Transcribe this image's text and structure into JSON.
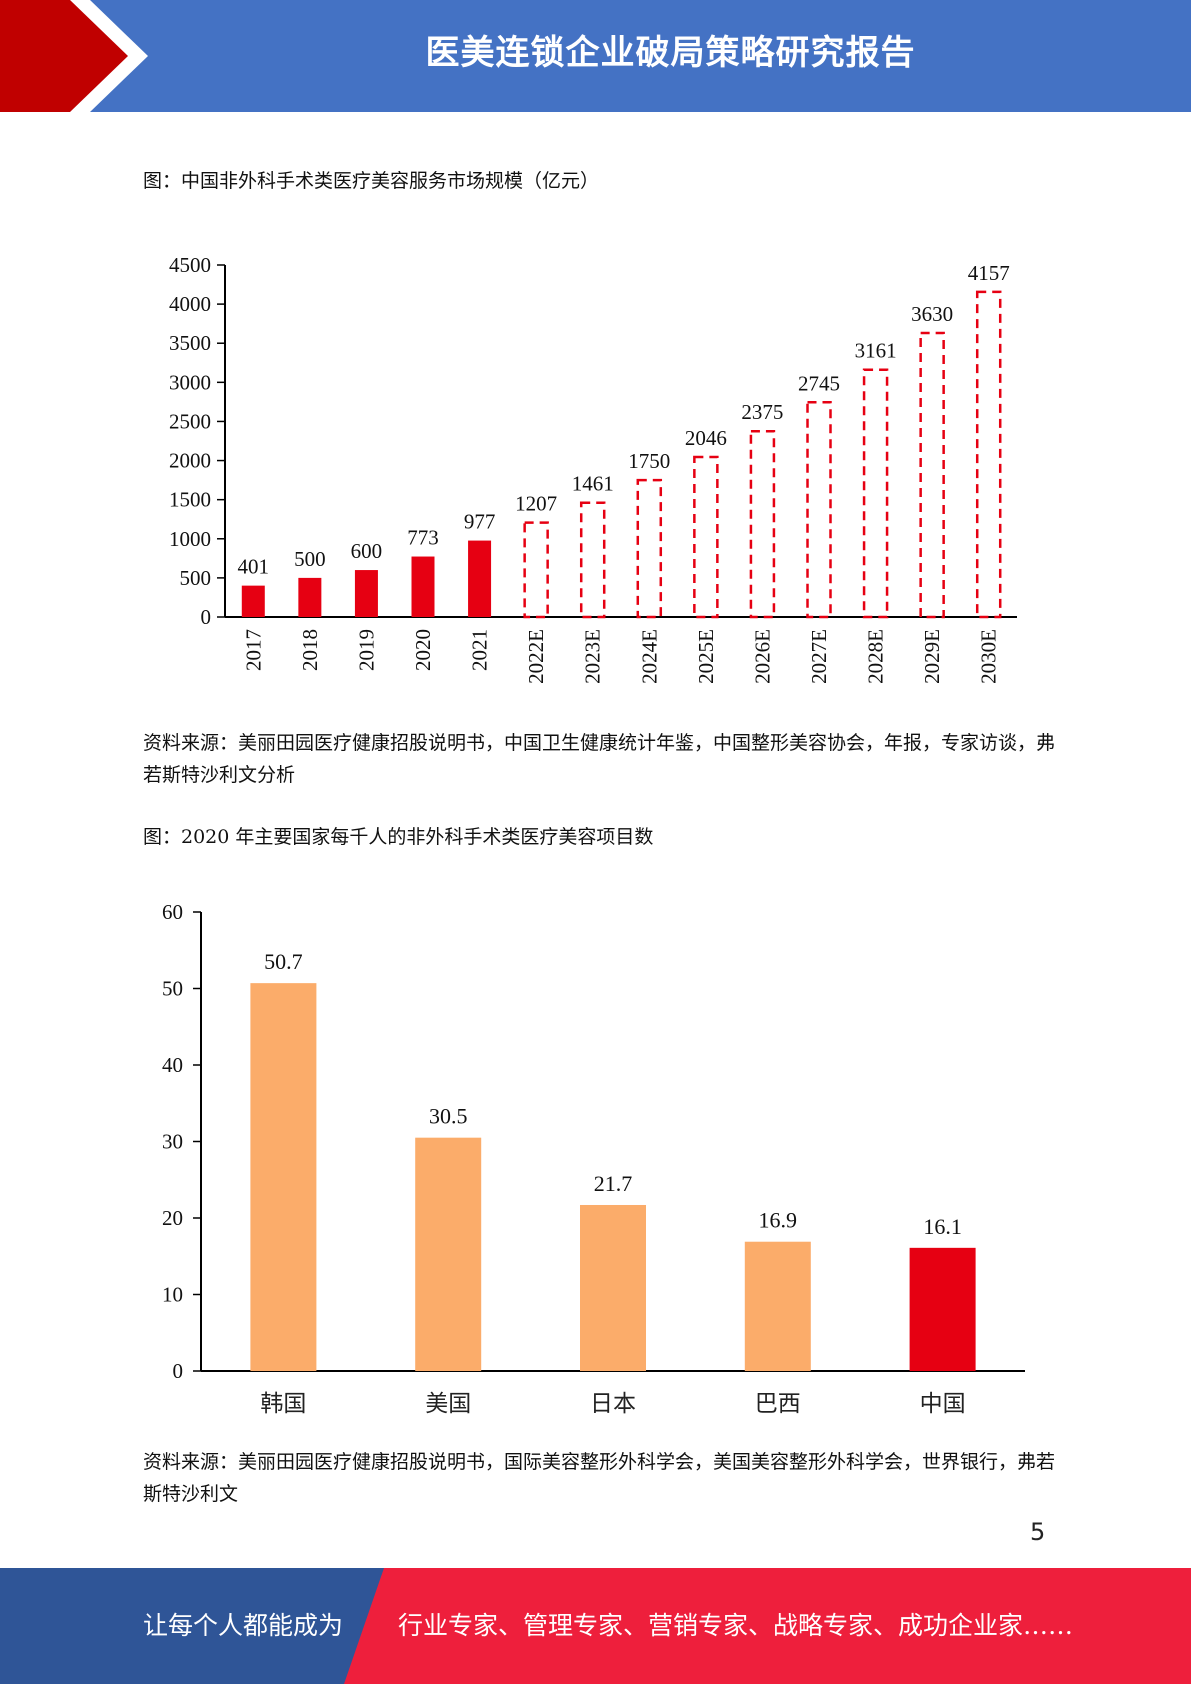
{
  "header": {
    "title": "医美连锁企业破局策略研究报告"
  },
  "figure1": {
    "caption": "图：中国非外科手术类医疗美容服务市场规模（亿元）",
    "source": "资料来源：美丽田园医疗健康招股说明书，中国卫生健康统计年鉴，中国整形美容协会，年报，专家访谈，弗若斯特沙利文分析"
  },
  "figure2": {
    "caption": "图：2020 年主要国家每千人的非外科手术类医疗美容项目数",
    "source": "资料来源：美丽田园医疗健康招股说明书，国际美容整形外科学会，美国美容整形外科学会，世界银行，弗若斯特沙利文"
  },
  "page_number": "5",
  "footer": {
    "left_text": "让每个人都能成为",
    "right_text": "行业专家、管理专家、营销专家、战略专家、成功企业家……"
  },
  "colors": {
    "header_blue": "#4472c4",
    "accent_red": "#e60012",
    "orange": "#fbac6a",
    "footer_blue": "#2f5597",
    "footer_red": "#ee1f3c"
  },
  "chart_data": [
    {
      "type": "bar",
      "categories": [
        "2017",
        "2018",
        "2019",
        "2020",
        "2021",
        "2022E",
        "2023E",
        "2024E",
        "2025E",
        "2026E",
        "2027E",
        "2028E",
        "2029E",
        "2030E"
      ],
      "values": [
        401,
        500,
        600,
        773,
        977,
        1207,
        1461,
        1750,
        2046,
        2375,
        2745,
        3161,
        3630,
        4157
      ],
      "data_labels": [
        "401",
        "500",
        "600",
        "773",
        "977",
        "1207",
        "1461",
        "1750",
        "2046",
        "2375",
        "2745",
        "3161",
        "3630",
        "4157"
      ],
      "estimated": [
        false,
        false,
        false,
        false,
        false,
        true,
        true,
        true,
        true,
        true,
        true,
        true,
        true,
        true
      ],
      "yticks": [
        "0",
        "500",
        "1000",
        "1500",
        "2000",
        "2500",
        "3000",
        "3500",
        "4000",
        "4500"
      ],
      "ylim": [
        0,
        4500
      ],
      "bar_color": "#e60012",
      "grid": false,
      "title": "",
      "xlabel": "",
      "ylabel": ""
    },
    {
      "type": "bar",
      "categories": [
        "韩国",
        "美国",
        "日本",
        "巴西",
        "中国"
      ],
      "values": [
        50.7,
        30.5,
        21.7,
        16.9,
        16.1
      ],
      "data_labels": [
        "50.7",
        "30.5",
        "21.7",
        "16.9",
        "16.1"
      ],
      "colors": [
        "#fbac6a",
        "#fbac6a",
        "#fbac6a",
        "#fbac6a",
        "#e60012"
      ],
      "yticks": [
        "0",
        "10",
        "20",
        "30",
        "40",
        "50",
        "60"
      ],
      "ylim": [
        0,
        60
      ],
      "grid": false,
      "title": "",
      "xlabel": "",
      "ylabel": ""
    }
  ]
}
